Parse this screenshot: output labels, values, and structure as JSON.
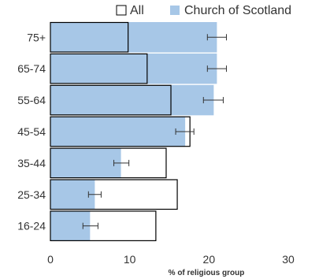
{
  "chart_data": {
    "type": "bar",
    "orientation": "horizontal",
    "title": "",
    "xlabel": "% of religious group",
    "ylabel": "",
    "xlim": [
      0,
      30
    ],
    "xticks": [
      "0",
      "10",
      "20",
      "30"
    ],
    "categories": [
      "75+",
      "65-74",
      "55-64",
      "45-54",
      "35-44",
      "25-34",
      "16-24"
    ],
    "legend_position": "top-right",
    "grid": false,
    "series": [
      {
        "name": "All",
        "style": "outline",
        "color": "#000000",
        "values": [
          9.8,
          12.2,
          15.2,
          17.6,
          14.6,
          16.0,
          13.3
        ]
      },
      {
        "name": "Church of Scotland",
        "style": "filled",
        "color": "#a7c7e7",
        "values": [
          21.0,
          21.0,
          20.6,
          17.0,
          8.9,
          5.6,
          5.0
        ],
        "error": [
          [
            19.8,
            22.2
          ],
          [
            19.8,
            22.2
          ],
          [
            19.3,
            21.8
          ],
          [
            15.8,
            18.1
          ],
          [
            8.0,
            9.9
          ],
          [
            4.8,
            6.4
          ],
          [
            4.1,
            6.0
          ]
        ]
      }
    ]
  }
}
